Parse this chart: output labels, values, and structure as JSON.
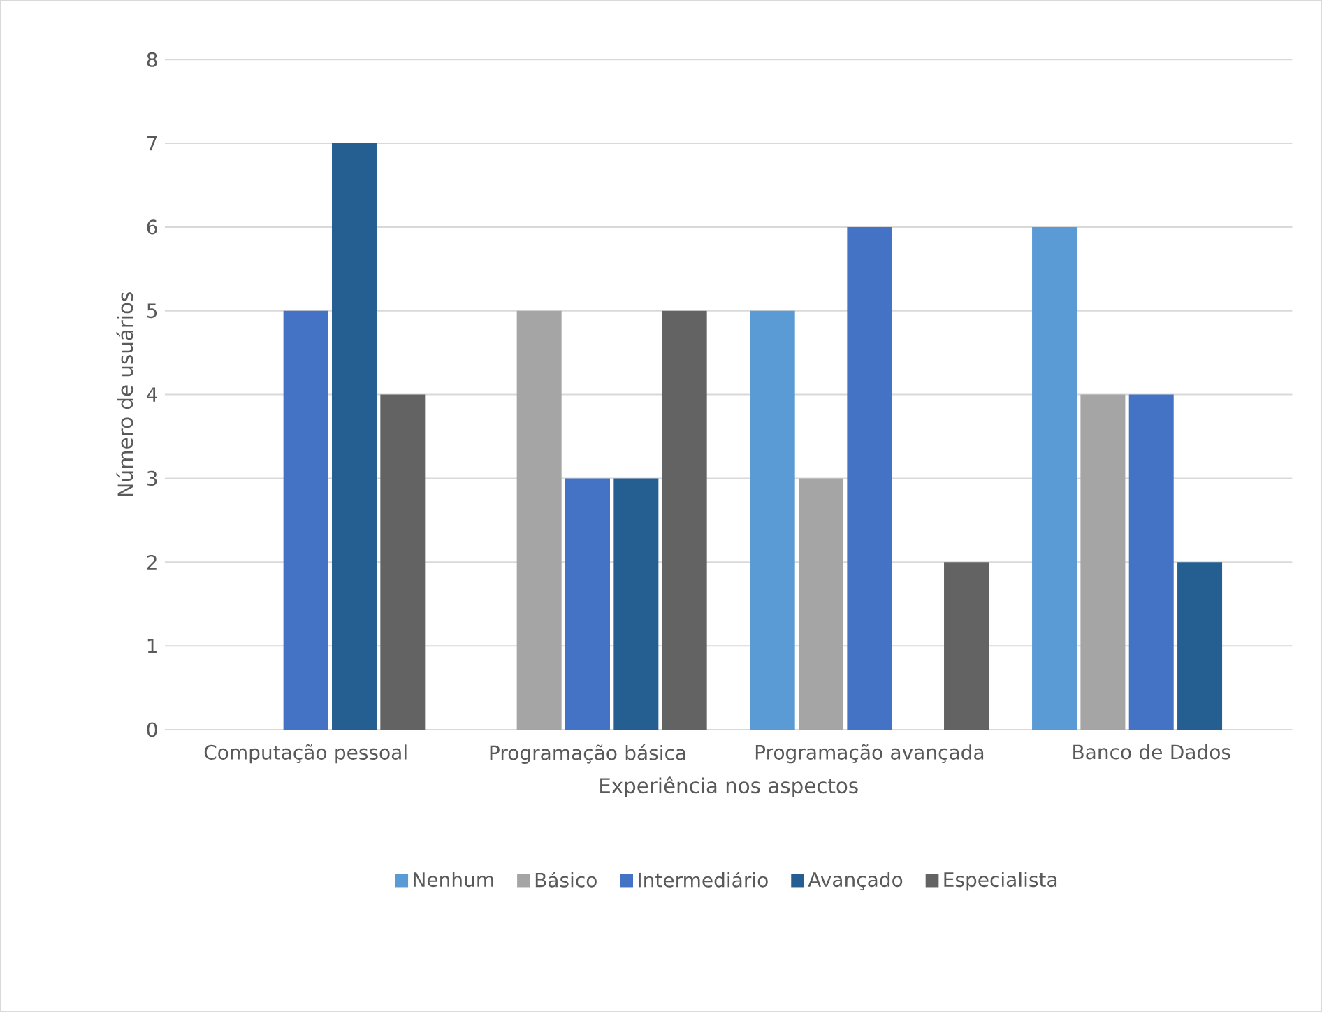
{
  "chart_data": {
    "type": "bar",
    "xlabel": "Experiência nos aspectos",
    "ylabel": "Número de usuários",
    "categories": [
      "Computação pessoal",
      "Programação básica",
      "Programação avançada",
      "Banco de Dados"
    ],
    "series": [
      {
        "name": "Nenhum",
        "color": "#5b9bd5",
        "values": [
          0,
          0,
          5,
          6
        ]
      },
      {
        "name": "Básico",
        "color": "#a5a5a5",
        "values": [
          0,
          5,
          3,
          4
        ]
      },
      {
        "name": "Intermediário",
        "color": "#4472c4",
        "values": [
          5,
          3,
          6,
          4
        ]
      },
      {
        "name": "Avançado",
        "color": "#255e91",
        "values": [
          7,
          3,
          0,
          2
        ]
      },
      {
        "name": "Especialista",
        "color": "#636363",
        "values": [
          4,
          5,
          2,
          0
        ]
      }
    ],
    "ylim": [
      0,
      8
    ],
    "yticks": [
      0,
      1,
      2,
      3,
      4,
      5,
      6,
      7,
      8
    ],
    "grid": "y",
    "legend": "bottom"
  }
}
